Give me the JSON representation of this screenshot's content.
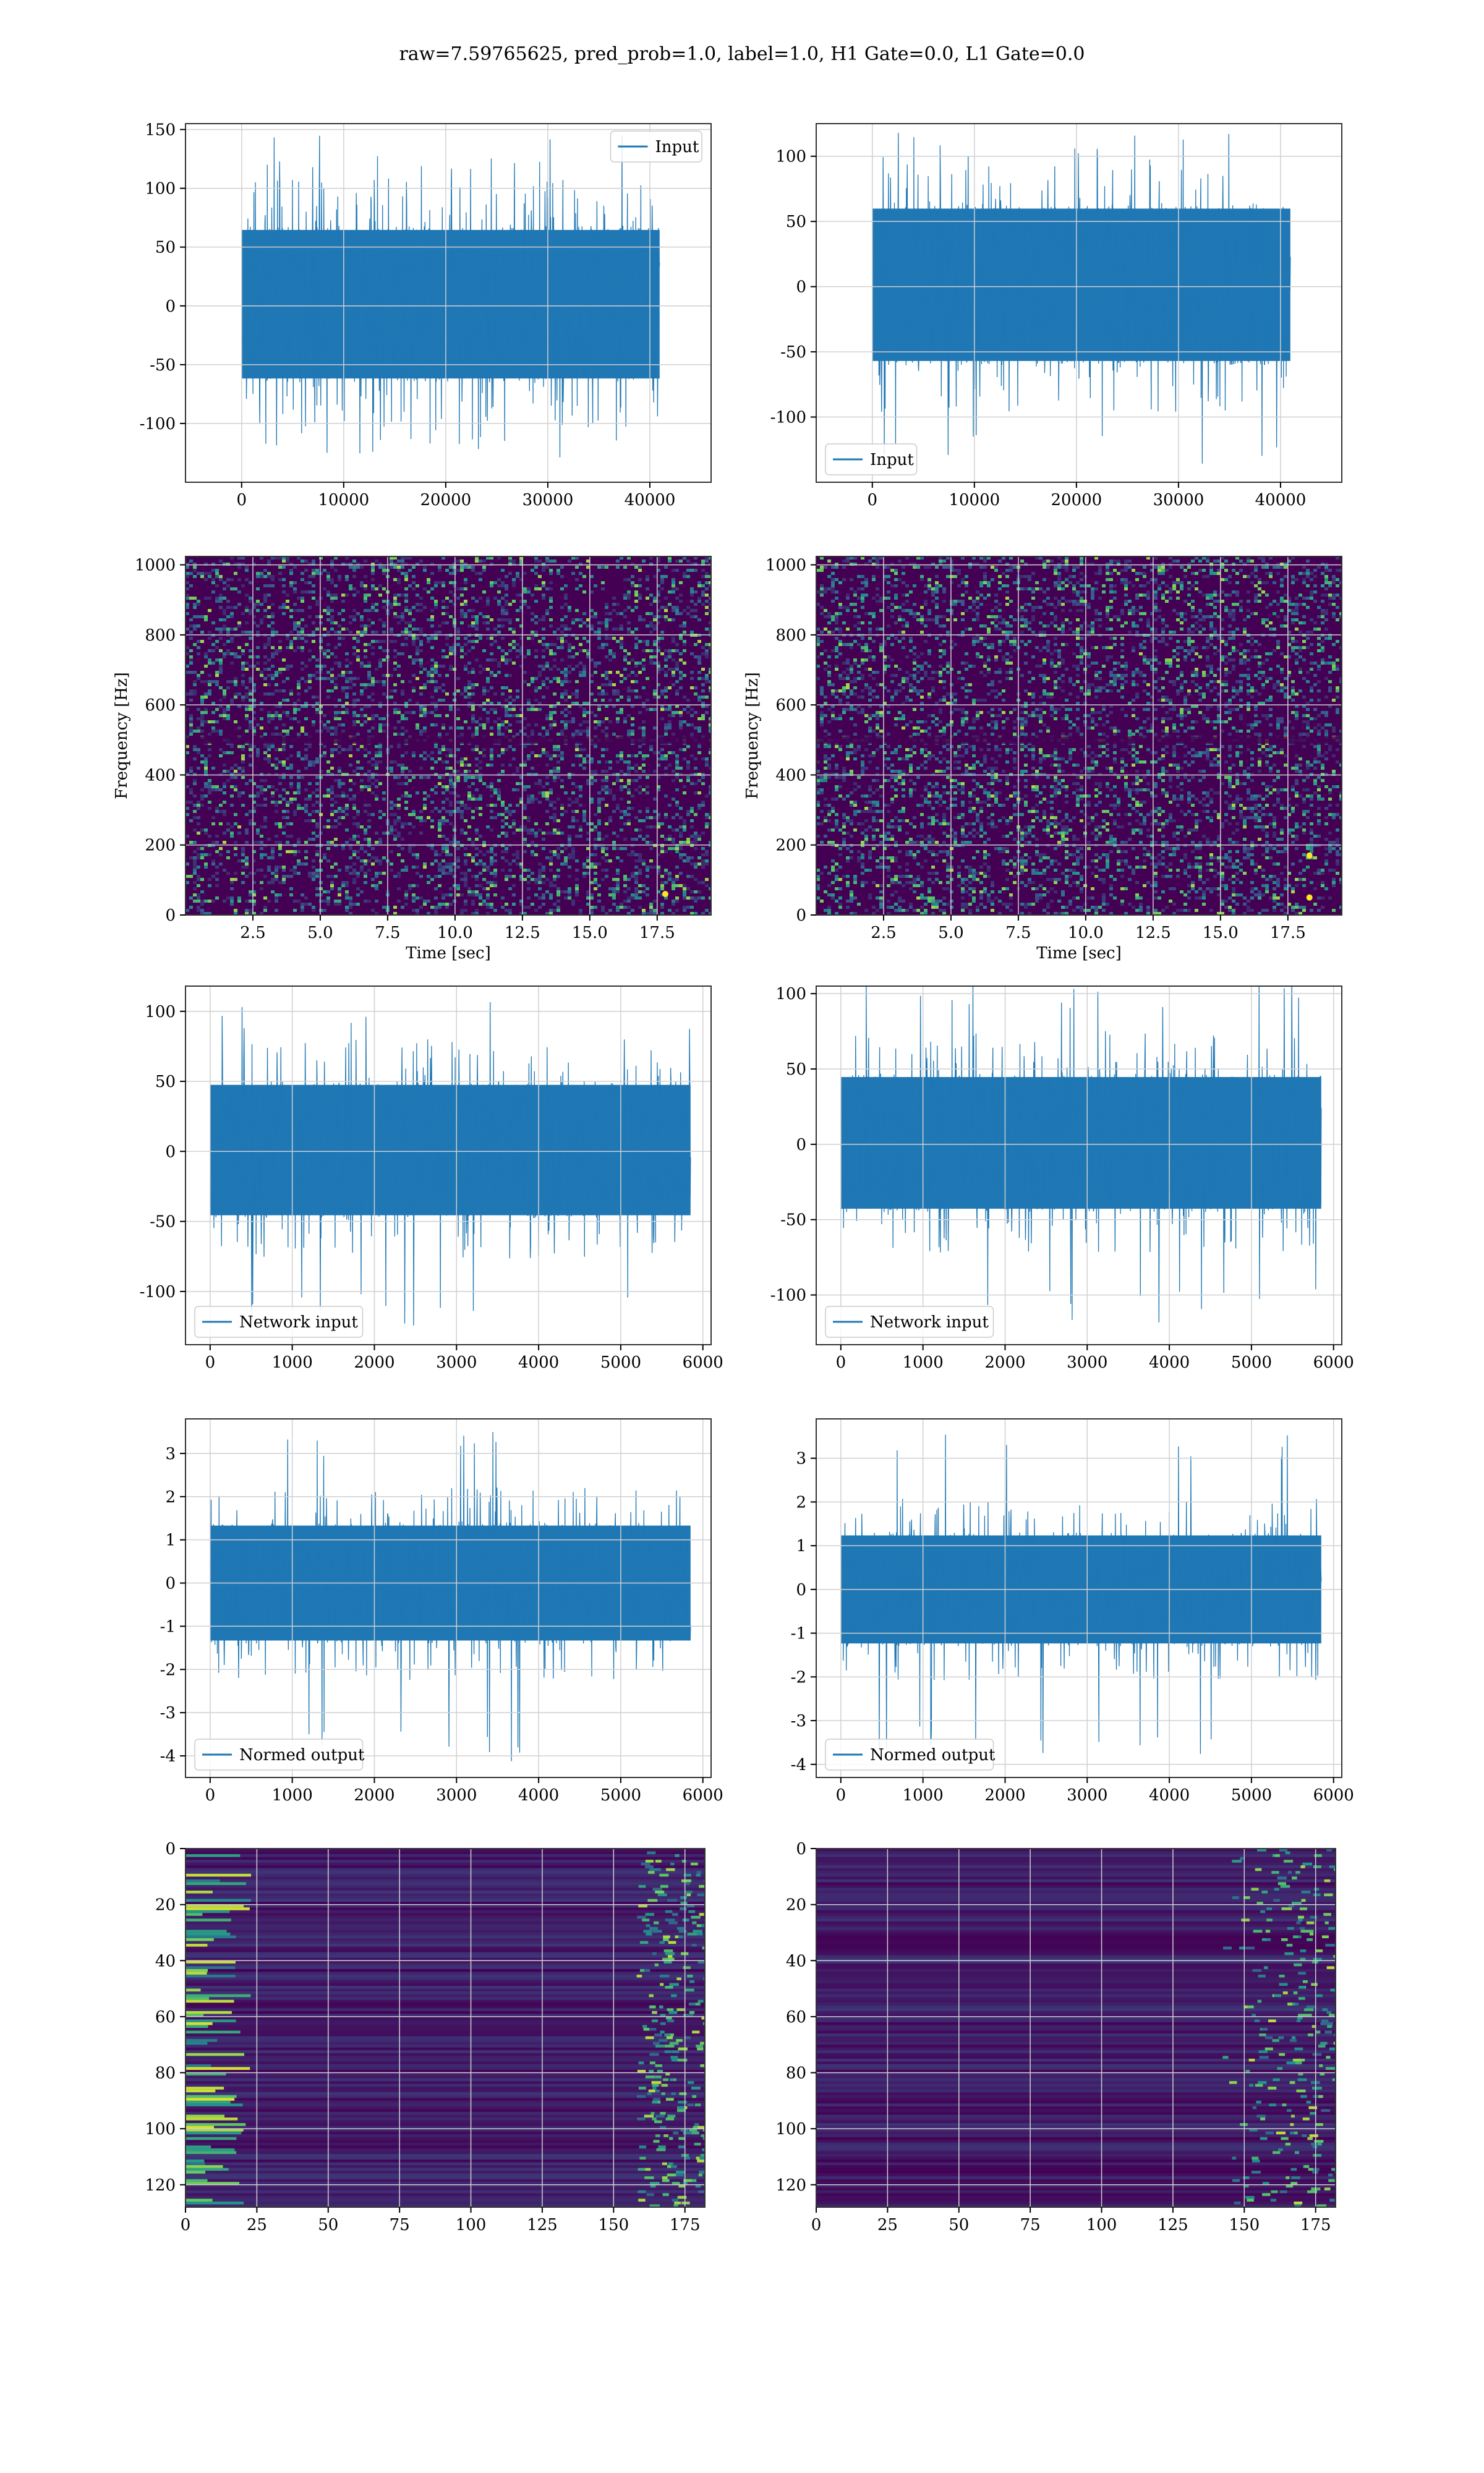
{
  "figure": {
    "suptitle": "raw=7.59765625, pred_prob=1.0, label=1.0, H1 Gate=0.0, L1 Gate=0.0"
  },
  "colors": {
    "line": "#1f77b4",
    "grid": "#d0d0d0",
    "viridis_low": "#440154",
    "viridis_mid": "#21918c",
    "viridis_high": "#fde725"
  },
  "chart_data": [
    {
      "type": "line",
      "panel": "row1-left",
      "noise_seed": 11,
      "xlim": [
        -5500,
        46000
      ],
      "ylim": [
        -150,
        155
      ],
      "xticks": [
        0,
        10000,
        20000,
        30000,
        40000
      ],
      "yticks": [
        -100,
        -50,
        0,
        50,
        100,
        150
      ],
      "xlabel": "",
      "ylabel": "",
      "legend": {
        "label": "Input",
        "loc": "upper right"
      },
      "series": [
        {
          "name": "Input",
          "x_range": [
            0,
            40960
          ],
          "band": [
            -65,
            68
          ],
          "peak": [
            -130,
            145
          ]
        }
      ]
    },
    {
      "type": "line",
      "panel": "row1-right",
      "noise_seed": 23,
      "xlim": [
        -5500,
        46000
      ],
      "ylim": [
        -150,
        125
      ],
      "xticks": [
        0,
        10000,
        20000,
        30000,
        40000
      ],
      "yticks": [
        -100,
        -50,
        0,
        50,
        100
      ],
      "xlabel": "",
      "ylabel": "",
      "legend": {
        "label": "Input",
        "loc": "lower left"
      },
      "series": [
        {
          "name": "Input",
          "x_range": [
            0,
            40960
          ],
          "band": [
            -60,
            63
          ],
          "peak": [
            -138,
            123
          ]
        }
      ]
    },
    {
      "type": "heatmap",
      "panel": "row2-left",
      "noise_seed": 37,
      "xlim": [
        0,
        19.5
      ],
      "ylim": [
        0,
        1024
      ],
      "xticks": [
        2.5,
        5.0,
        7.5,
        10.0,
        12.5,
        15.0,
        17.5
      ],
      "yticks": [
        0,
        200,
        400,
        600,
        800,
        1000
      ],
      "xlabel": "Time [sec]",
      "ylabel": "Frequency [Hz]",
      "colormap": "viridis",
      "hotspots": [
        [
          17.8,
          60
        ]
      ]
    },
    {
      "type": "heatmap",
      "panel": "row2-right",
      "noise_seed": 41,
      "xlim": [
        0,
        19.5
      ],
      "ylim": [
        0,
        1024
      ],
      "xticks": [
        2.5,
        5.0,
        7.5,
        10.0,
        12.5,
        15.0,
        17.5
      ],
      "yticks": [
        0,
        200,
        400,
        600,
        800,
        1000
      ],
      "xlabel": "Time [sec]",
      "ylabel": "Frequency [Hz]",
      "colormap": "viridis",
      "hotspots": [
        [
          18.3,
          50
        ],
        [
          18.3,
          170
        ]
      ]
    },
    {
      "type": "line",
      "panel": "row3-left",
      "noise_seed": 53,
      "xlim": [
        -300,
        6100
      ],
      "ylim": [
        -138,
        118
      ],
      "xticks": [
        0,
        1000,
        2000,
        3000,
        4000,
        5000,
        6000
      ],
      "yticks": [
        -100,
        -50,
        0,
        50,
        100
      ],
      "xlabel": "",
      "ylabel": "",
      "legend": {
        "label": "Network input",
        "loc": "lower left"
      },
      "series": [
        {
          "name": "Network input",
          "x_range": [
            0,
            5850
          ],
          "band": [
            -48,
            50
          ],
          "peak": [
            -125,
            107
          ]
        }
      ]
    },
    {
      "type": "line",
      "panel": "row3-right",
      "noise_seed": 67,
      "xlim": [
        -300,
        6100
      ],
      "ylim": [
        -133,
        105
      ],
      "xticks": [
        0,
        1000,
        2000,
        3000,
        4000,
        5000,
        6000
      ],
      "yticks": [
        -100,
        -50,
        0,
        50,
        100
      ],
      "xlabel": "",
      "ylabel": "",
      "legend": {
        "label": "Network input",
        "loc": "lower left"
      },
      "series": [
        {
          "name": "Network input",
          "x_range": [
            0,
            5850
          ],
          "band": [
            -45,
            47
          ],
          "peak": [
            -120,
            112
          ]
        }
      ]
    },
    {
      "type": "line",
      "panel": "row4-left",
      "noise_seed": 71,
      "xlim": [
        -300,
        6100
      ],
      "ylim": [
        -4.5,
        3.8
      ],
      "xticks": [
        0,
        1000,
        2000,
        3000,
        4000,
        5000,
        6000
      ],
      "yticks": [
        -4,
        -3,
        -2,
        -1,
        0,
        1,
        2,
        3
      ],
      "xlabel": "",
      "ylabel": "",
      "legend": {
        "label": "Normed output",
        "loc": "lower left"
      },
      "series": [
        {
          "name": "Normed output",
          "x_range": [
            0,
            5850
          ],
          "band": [
            -1.4,
            1.4
          ],
          "peak": [
            -4.2,
            3.5
          ]
        }
      ]
    },
    {
      "type": "line",
      "panel": "row4-right",
      "noise_seed": 83,
      "xlim": [
        -300,
        6100
      ],
      "ylim": [
        -4.3,
        3.9
      ],
      "xticks": [
        0,
        1000,
        2000,
        3000,
        4000,
        5000,
        6000
      ],
      "yticks": [
        -4,
        -3,
        -2,
        -1,
        0,
        1,
        2,
        3
      ],
      "xlabel": "",
      "ylabel": "",
      "legend": {
        "label": "Normed output",
        "loc": "lower left"
      },
      "series": [
        {
          "name": "Normed output",
          "x_range": [
            0,
            5850
          ],
          "band": [
            -1.3,
            1.3
          ],
          "peak": [
            -3.9,
            3.6
          ]
        }
      ]
    },
    {
      "type": "heatmap",
      "panel": "row5-left",
      "noise_seed": 97,
      "xlim": [
        0,
        182
      ],
      "ylim": [
        128,
        0
      ],
      "xticks": [
        0,
        25,
        50,
        75,
        100,
        125,
        150,
        175
      ],
      "yticks": [
        0,
        20,
        40,
        60,
        80,
        100,
        120
      ],
      "xlabel": "",
      "ylabel": "",
      "colormap": "viridis",
      "note": "bright activations near x=0-20 and x=160-180"
    },
    {
      "type": "heatmap",
      "panel": "row5-right",
      "noise_seed": 101,
      "xlim": [
        0,
        182
      ],
      "ylim": [
        128,
        0
      ],
      "xticks": [
        0,
        25,
        50,
        75,
        100,
        125,
        150,
        175
      ],
      "yticks": [
        0,
        20,
        40,
        60,
        80,
        100,
        120
      ],
      "xlabel": "",
      "ylabel": "",
      "colormap": "viridis",
      "note": "activations concentrated near x=140-182"
    }
  ]
}
